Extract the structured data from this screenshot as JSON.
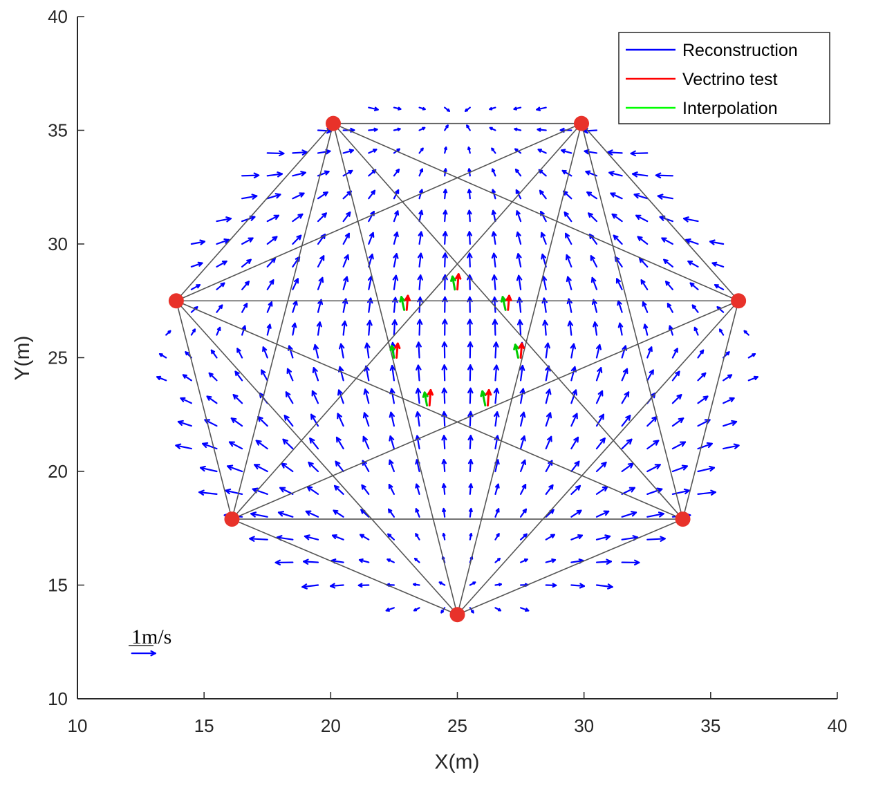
{
  "chart_data": {
    "type": "quiver",
    "xlabel": "X(m)",
    "ylabel": "Y(m)",
    "xlim": [
      10,
      40
    ],
    "ylim": [
      10,
      40
    ],
    "xticks": [
      10,
      15,
      20,
      25,
      30,
      35,
      40
    ],
    "yticks": [
      10,
      15,
      20,
      25,
      30,
      35,
      40
    ],
    "grid": false,
    "legend_position": "top-right",
    "legend": [
      {
        "label": "Reconstruction",
        "color": "#0000ff"
      },
      {
        "label": "Vectrino test",
        "color": "#ff0000"
      },
      {
        "label": "Interpolation",
        "color": "#00ff00"
      }
    ],
    "transducers": {
      "color": "#e8322a",
      "points": [
        {
          "x": 20.1,
          "y": 35.3
        },
        {
          "x": 29.9,
          "y": 35.3
        },
        {
          "x": 36.1,
          "y": 27.5
        },
        {
          "x": 33.9,
          "y": 17.9
        },
        {
          "x": 25.0,
          "y": 13.7
        },
        {
          "x": 16.1,
          "y": 17.9
        },
        {
          "x": 13.9,
          "y": 27.5
        }
      ]
    },
    "paths_color": "#555555",
    "vector_field": {
      "series": "Reconstruction",
      "color": "#0000ff",
      "grid_x_start": 13.5,
      "grid_x_end": 36.5,
      "grid_y_start": 13.0,
      "grid_y_end": 36.3,
      "grid_step": 1.0,
      "center": {
        "x": 25.0,
        "y": 25.2
      },
      "radius": 11.6,
      "peak_speed": 0.6
    },
    "test_points": [
      {
        "x": 25.0,
        "y": 28.0,
        "vectrino": [
          0.05,
          0.65
        ],
        "interpolation": [
          -0.1,
          0.55
        ]
      },
      {
        "x": 23.0,
        "y": 27.1,
        "vectrino": [
          0.05,
          0.6
        ],
        "interpolation": [
          -0.12,
          0.55
        ]
      },
      {
        "x": 27.0,
        "y": 27.1,
        "vectrino": [
          0.05,
          0.6
        ],
        "interpolation": [
          -0.12,
          0.55
        ]
      },
      {
        "x": 22.6,
        "y": 25.0,
        "vectrino": [
          0.05,
          0.6
        ],
        "interpolation": [
          -0.1,
          0.5
        ]
      },
      {
        "x": 27.5,
        "y": 25.0,
        "vectrino": [
          0.05,
          0.6
        ],
        "interpolation": [
          -0.12,
          0.55
        ]
      },
      {
        "x": 23.9,
        "y": 22.9,
        "vectrino": [
          0.05,
          0.65
        ],
        "interpolation": [
          -0.1,
          0.55
        ]
      },
      {
        "x": 26.2,
        "y": 22.9,
        "vectrino": [
          0.05,
          0.65
        ],
        "interpolation": [
          -0.12,
          0.6
        ]
      }
    ],
    "scale_arrow": {
      "label": "1m/s",
      "x": 12.0,
      "y": 12.0,
      "speed": 1.0
    }
  }
}
